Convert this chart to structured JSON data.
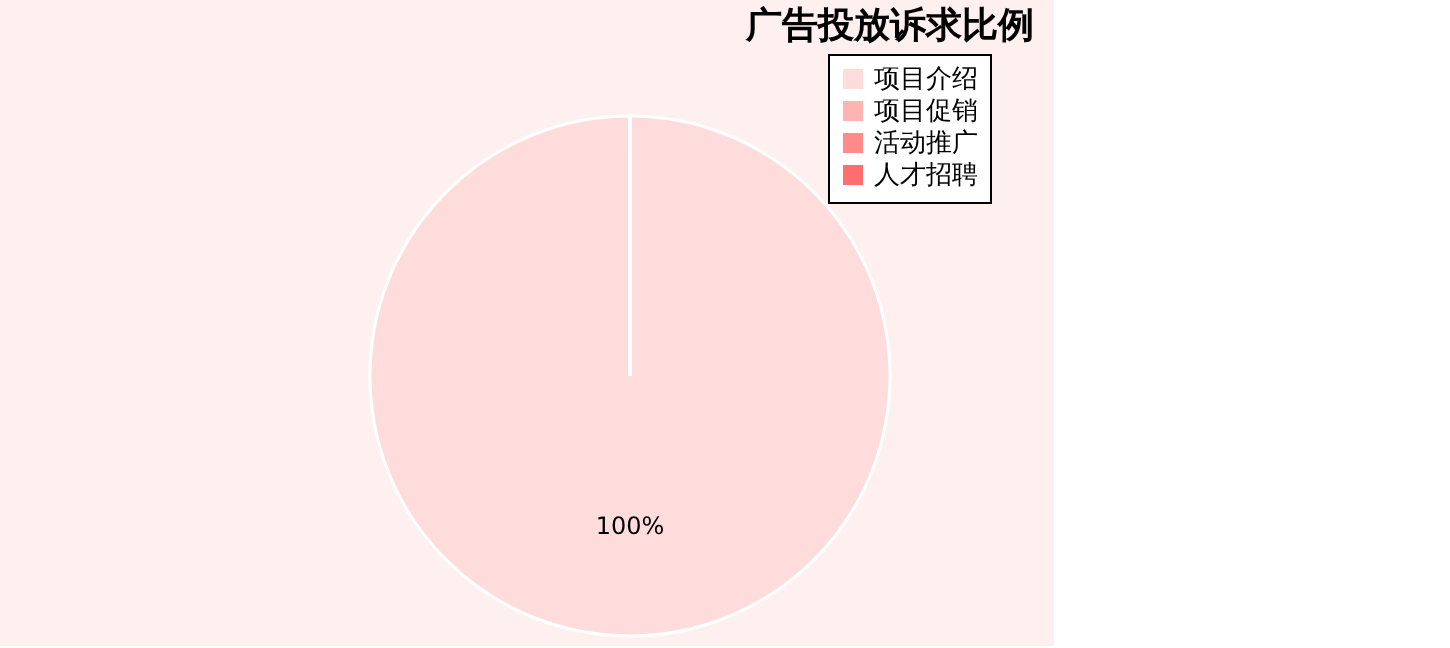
{
  "chart_data": {
    "type": "pie",
    "title": "广告投放诉求比例",
    "categories": [
      "项目介绍",
      "项目促销",
      "活动推广",
      "人才招聘"
    ],
    "values": [
      100,
      0,
      0,
      0
    ],
    "colors": [
      "#ffdcdc",
      "#ffb4b4",
      "#ff8a8a",
      "#ff6e6e"
    ],
    "value_labels": [
      "100%",
      null,
      null,
      null
    ],
    "legend": "top right"
  }
}
